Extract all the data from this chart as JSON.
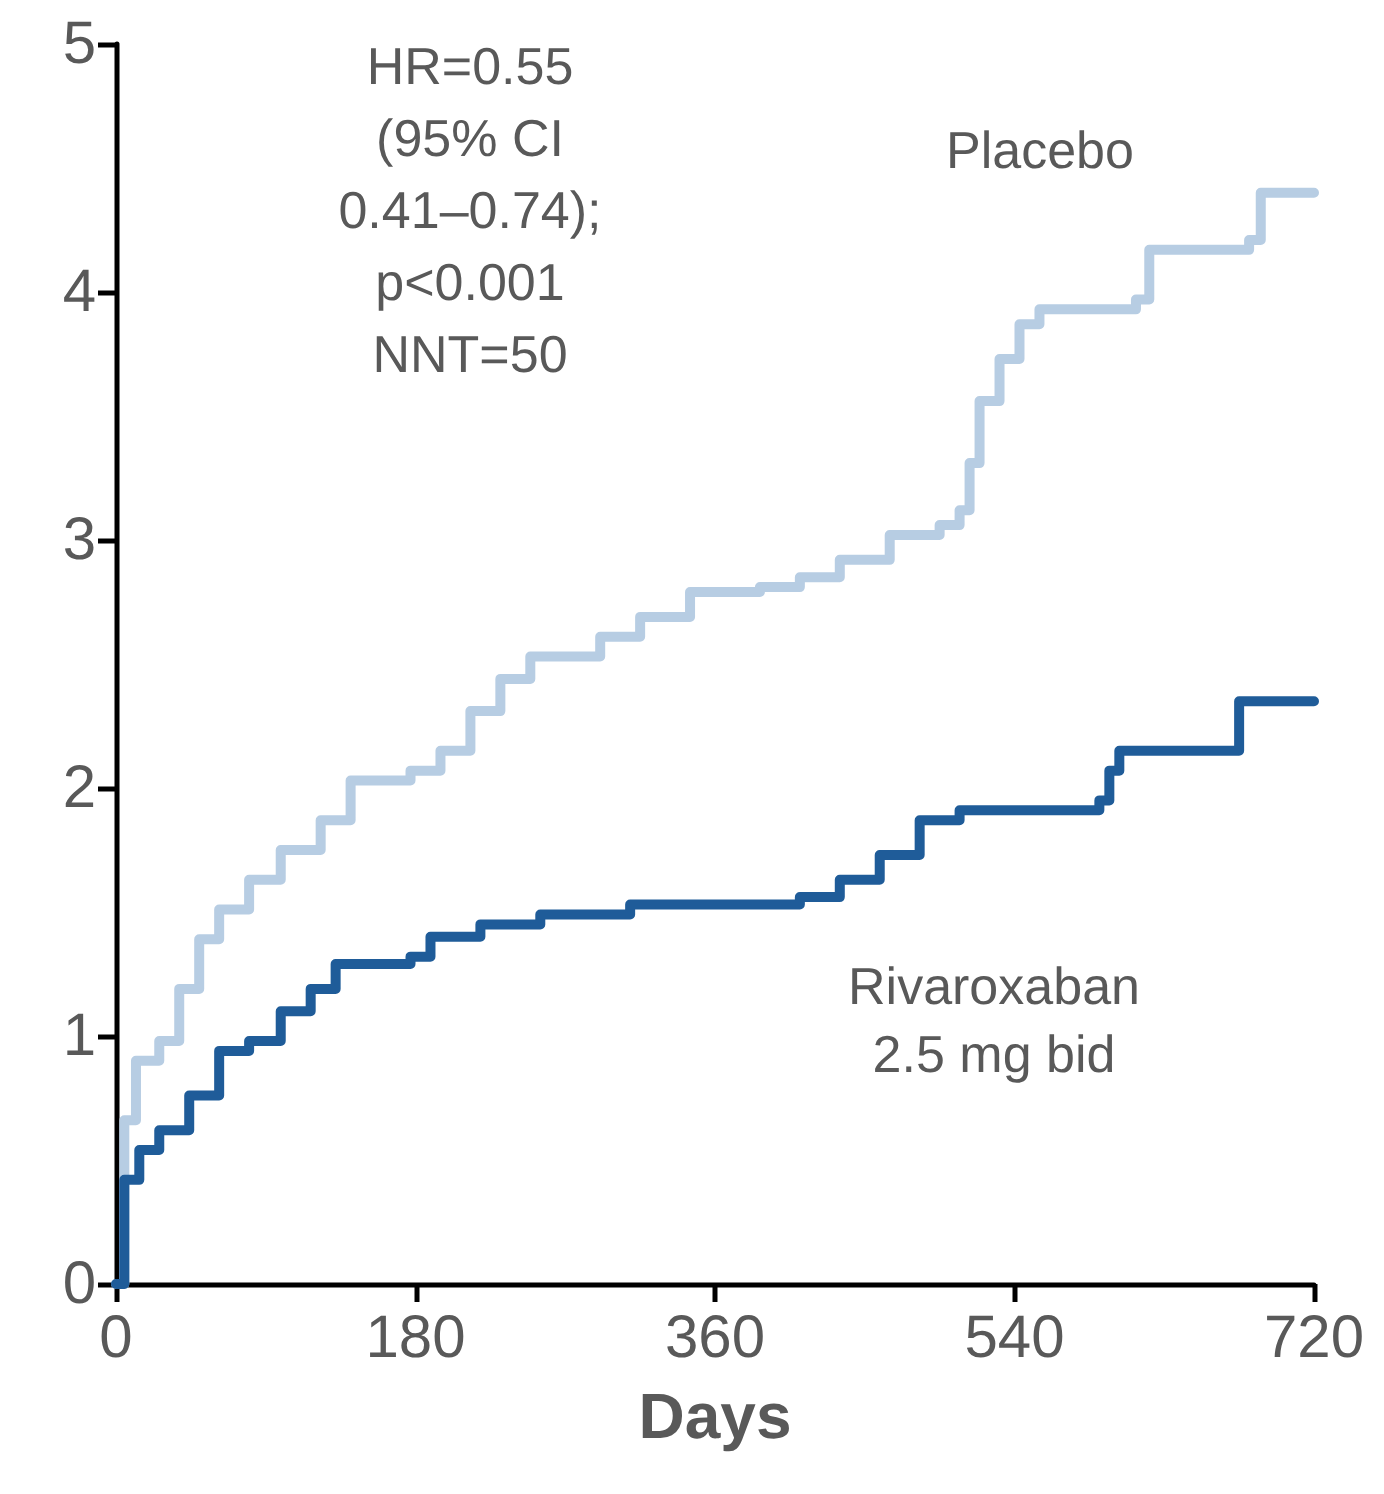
{
  "chart_data": {
    "type": "step",
    "xlabel": "Days",
    "xlim": [
      0,
      720
    ],
    "xticks": [
      0,
      180,
      360,
      540,
      720
    ],
    "ylim": [
      0,
      5
    ],
    "yticks": [
      0,
      1,
      2,
      3,
      4,
      5
    ],
    "grid": false,
    "legend": false,
    "marker": "none",
    "line_style": "solid",
    "annotations": [
      "HR=0.55\n(95% CI\n0.41–0.74);\np<0.001\nNNT=50"
    ],
    "series": [
      {
        "name": "Placebo",
        "color": "#b7cde3",
        "x": [
          0,
          5,
          12,
          26,
          38,
          50,
          62,
          80,
          99,
          123,
          141,
          177,
          195,
          213,
          231,
          249,
          291,
          315,
          345,
          387,
          411,
          435,
          465,
          495,
          507,
          513,
          519,
          531,
          543,
          555,
          613,
          621,
          681,
          688,
          720
        ],
        "values": [
          0,
          0.66,
          0.9,
          0.98,
          1.19,
          1.39,
          1.51,
          1.63,
          1.75,
          1.87,
          2.03,
          2.07,
          2.15,
          2.31,
          2.44,
          2.53,
          2.61,
          2.69,
          2.79,
          2.81,
          2.85,
          2.92,
          3.02,
          3.06,
          3.12,
          3.31,
          3.56,
          3.73,
          3.87,
          3.93,
          3.97,
          4.17,
          4.21,
          4.4,
          4.4
        ]
      },
      {
        "name": "Rivaroxaban\n2.5 mg bid",
        "color": "#1f5c99",
        "x": [
          0,
          5,
          14,
          26,
          44,
          62,
          80,
          99,
          117,
          132,
          177,
          189,
          219,
          255,
          309,
          411,
          435,
          459,
          483,
          507,
          591,
          597,
          603,
          675,
          720
        ],
        "values": [
          0,
          0.42,
          0.54,
          0.62,
          0.76,
          0.94,
          0.98,
          1.1,
          1.19,
          1.29,
          1.32,
          1.4,
          1.45,
          1.49,
          1.53,
          1.56,
          1.63,
          1.73,
          1.87,
          1.91,
          1.95,
          2.07,
          2.15,
          2.35,
          2.35
        ]
      }
    ]
  }
}
